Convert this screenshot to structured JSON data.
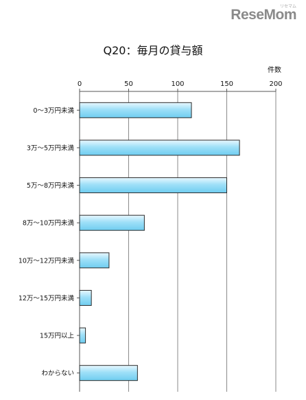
{
  "logo": {
    "text": "ReseMom",
    "subtext": "リセマム"
  },
  "chart_data": {
    "type": "bar",
    "orientation": "horizontal",
    "title": "Q20：毎月の貸与額",
    "unit_label": "件数",
    "categories": [
      "0～3万円未満",
      "3万～5万円未満",
      "5万～8万円未満",
      "8万～10万円未満",
      "10万～12万円未満",
      "12万～15万円未満",
      "15万円以上",
      "わからない"
    ],
    "values": [
      114,
      163,
      150,
      66,
      30,
      12,
      6,
      59
    ],
    "xlim": [
      0,
      200
    ],
    "xticks": [
      0,
      50,
      100,
      150,
      200
    ],
    "grid": true,
    "bar_color": "#8fd9f5",
    "bar_edge_color": "#2a2a2a"
  }
}
